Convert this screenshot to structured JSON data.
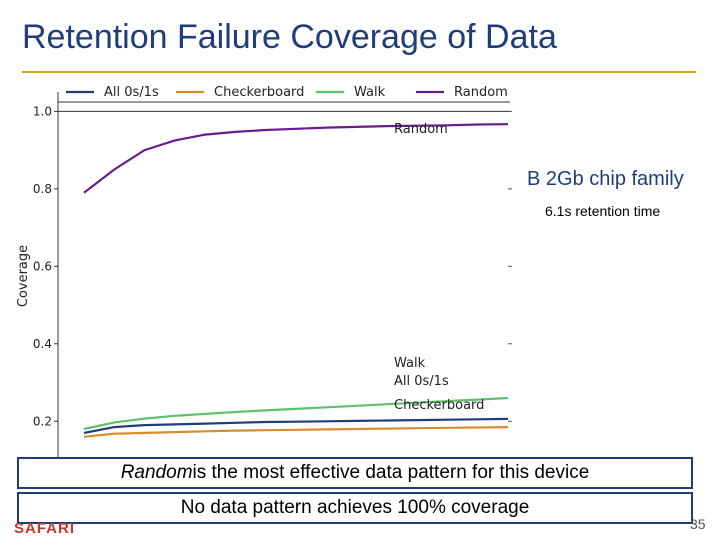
{
  "slide": {
    "title": "Retention Failure Coverage of Data",
    "side_note": "B 2Gb chip family",
    "side_sub": "6.1s retention time",
    "callout_1_emph": "Random",
    "callout_1_rest": " is the most effective data pattern for this device",
    "callout_2": "No data pattern achieves 100% coverage",
    "brand": "SAFARI",
    "page_number": "35"
  },
  "colors": {
    "title": "#1f3d7a",
    "rule": "#c8a814",
    "all0s1s": "#1f3d7a",
    "checkerboard": "#d98c2b",
    "walk": "#5cc26b",
    "random": "#6a1b8f"
  },
  "chart_data": {
    "type": "line",
    "title": "",
    "xlabel": "",
    "ylabel": "Coverage",
    "ylim": [
      0.1,
      1.05
    ],
    "yticks": [
      0.2,
      0.4,
      0.6,
      0.8,
      1.0
    ],
    "ytick_labels": [
      "0.2",
      "0.4",
      "0.6",
      "0.8",
      "1.0"
    ],
    "legend_position": "top",
    "x": [
      1,
      2,
      3,
      4,
      5,
      6,
      7,
      8,
      9,
      10,
      11,
      12,
      13,
      14,
      15
    ],
    "series": [
      {
        "name": "All 0s/1s",
        "color": "#1f3d7a",
        "label": "All 0s/1s",
        "values": [
          0.17,
          0.185,
          0.19,
          0.192,
          0.194,
          0.196,
          0.198,
          0.199,
          0.2,
          0.201,
          0.202,
          0.203,
          0.204,
          0.205,
          0.206
        ]
      },
      {
        "name": "Checkerboard",
        "color": "#d98c2b",
        "label": "Checkerboard",
        "values": [
          0.16,
          0.168,
          0.17,
          0.172,
          0.174,
          0.176,
          0.177,
          0.178,
          0.179,
          0.18,
          0.181,
          0.182,
          0.183,
          0.184,
          0.185
        ]
      },
      {
        "name": "Walk",
        "color": "#5cc26b",
        "label": "Walk",
        "values": [
          0.18,
          0.197,
          0.207,
          0.214,
          0.219,
          0.224,
          0.228,
          0.232,
          0.236,
          0.24,
          0.244,
          0.248,
          0.252,
          0.256,
          0.26
        ]
      },
      {
        "name": "Random",
        "color": "#6a1b8f",
        "label": "Random",
        "values": [
          0.79,
          0.85,
          0.9,
          0.925,
          0.94,
          0.947,
          0.952,
          0.955,
          0.958,
          0.96,
          0.962,
          0.963,
          0.964,
          0.966,
          0.967
        ]
      }
    ]
  }
}
